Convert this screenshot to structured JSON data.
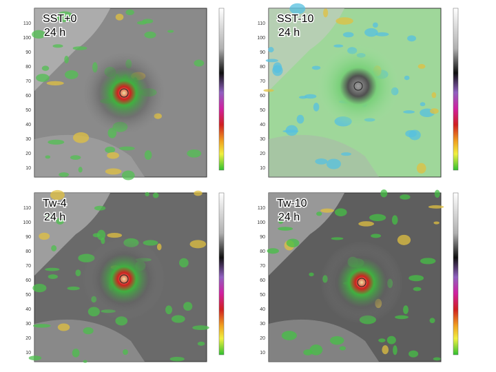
{
  "panels": [
    {
      "label": "SST+0",
      "time": "24 h"
    },
    {
      "label": "SST-10",
      "time": "24 h"
    },
    {
      "label": "Tw-4",
      "time": "24 h"
    },
    {
      "label": "Tw-10",
      "time": "24 h"
    }
  ],
  "y_axis_labels": [
    "110",
    "100",
    "90",
    "80",
    "70",
    "60",
    "50",
    "40",
    "30",
    "20",
    "10"
  ]
}
